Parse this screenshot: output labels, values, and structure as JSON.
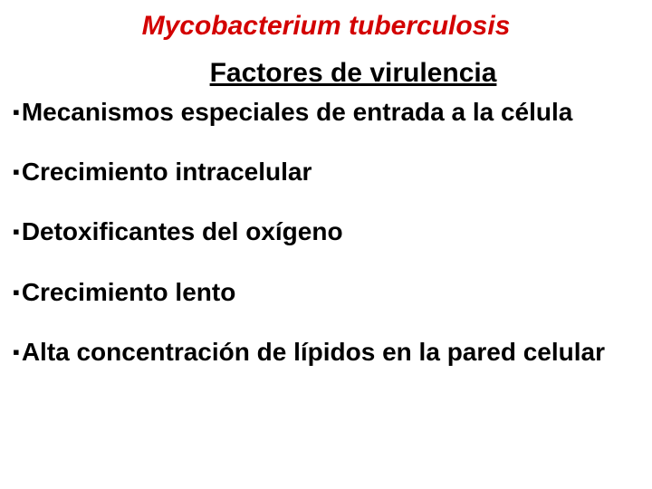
{
  "title": {
    "text": "Mycobacterium tuberculosis",
    "color": "#d30000",
    "fontsize": 30,
    "italic": true,
    "bold": true
  },
  "subtitle": {
    "text": "Factores de virulencia",
    "color": "#000000",
    "fontsize": 30,
    "underline": true,
    "bold": true
  },
  "bullet_char": "▪",
  "items": [
    "Mecanismos especiales de entrada a la célula",
    "Crecimiento intracelular",
    "Detoxificantes del oxígeno",
    "Crecimiento lento",
    "Alta concentración de lípidos en la pared celular"
  ],
  "item_style": {
    "color": "#000000",
    "fontsize": 28,
    "bold": true
  },
  "background_color": "#ffffff"
}
